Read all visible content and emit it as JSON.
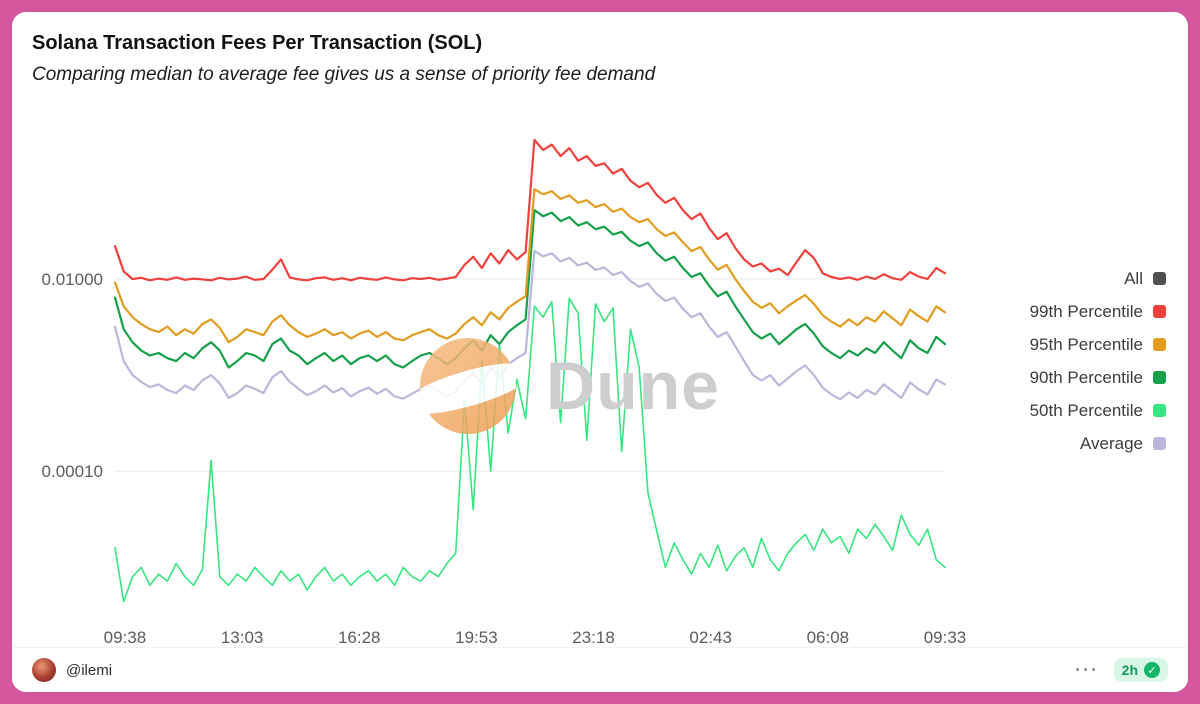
{
  "card": {
    "title": "Solana Transaction Fees Per Transaction (SOL)",
    "subtitle": "Comparing median to average fee gives us a sense of priority fee demand"
  },
  "watermark": {
    "text": "Dune"
  },
  "footer": {
    "author": "@ilemi",
    "menu": "⋯",
    "badge": {
      "time": "2h",
      "check": "✓"
    }
  },
  "chart_data": {
    "type": "line",
    "title": "Solana Transaction Fees Per Transaction (SOL)",
    "x_ticks": [
      "09:38",
      "13:03",
      "16:28",
      "19:53",
      "23:18",
      "02:43",
      "06:08",
      "09:33"
    ],
    "y_axis": {
      "scale": "log",
      "min": 3.6e-06,
      "max": 0.4,
      "ticks": [
        {
          "label": "0.01000",
          "value": 0.01
        },
        {
          "label": "0.00010",
          "value": 0.0001
        }
      ]
    },
    "grid": "horizontal-only",
    "legend_position": "right",
    "legend": [
      {
        "label": "All",
        "color": "#4f4f4f"
      },
      {
        "label": "99th Percentile",
        "color": "#f0413c"
      },
      {
        "label": "95th Percentile",
        "color": "#e29c1f"
      },
      {
        "label": "90th Percentile",
        "color": "#16a04a"
      },
      {
        "label": "50th Percentile",
        "color": "#37e581"
      },
      {
        "label": "Average",
        "color": "#bcb7da"
      }
    ],
    "series": [
      {
        "name": "99th Percentile",
        "color": "#f0413c",
        "values": [
          0.022,
          0.012,
          0.01,
          0.0103,
          0.0097,
          0.0101,
          0.0098,
          0.0104,
          0.0098,
          0.0101,
          0.0099,
          0.0097,
          0.0103,
          0.0099,
          0.0101,
          0.0106,
          0.0098,
          0.01,
          0.0125,
          0.016,
          0.0104,
          0.0099,
          0.0097,
          0.0102,
          0.0104,
          0.0098,
          0.0102,
          0.0097,
          0.0103,
          0.01,
          0.0098,
          0.0104,
          0.0099,
          0.0097,
          0.0102,
          0.01,
          0.0103,
          0.0098,
          0.0101,
          0.0105,
          0.014,
          0.017,
          0.013,
          0.0185,
          0.0145,
          0.02,
          0.016,
          0.019,
          0.28,
          0.22,
          0.25,
          0.19,
          0.23,
          0.17,
          0.19,
          0.15,
          0.16,
          0.125,
          0.14,
          0.105,
          0.09,
          0.1,
          0.075,
          0.062,
          0.07,
          0.052,
          0.042,
          0.048,
          0.034,
          0.026,
          0.03,
          0.021,
          0.016,
          0.0135,
          0.0145,
          0.012,
          0.0128,
          0.011,
          0.015,
          0.02,
          0.0165,
          0.0115,
          0.0105,
          0.01,
          0.0104,
          0.0098,
          0.0106,
          0.01,
          0.0112,
          0.0102,
          0.0098,
          0.0118,
          0.0106,
          0.01,
          0.013,
          0.0115
        ]
      },
      {
        "name": "95th Percentile",
        "color": "#e29c1f",
        "values": [
          0.0092,
          0.0052,
          0.004,
          0.0034,
          0.003,
          0.0028,
          0.0032,
          0.0026,
          0.003,
          0.0027,
          0.0034,
          0.0038,
          0.0031,
          0.0022,
          0.0025,
          0.003,
          0.0028,
          0.0026,
          0.0036,
          0.0042,
          0.0033,
          0.0028,
          0.0025,
          0.0027,
          0.003,
          0.0026,
          0.0028,
          0.0024,
          0.0027,
          0.0029,
          0.0025,
          0.0028,
          0.0024,
          0.0023,
          0.0026,
          0.0028,
          0.003,
          0.0026,
          0.0024,
          0.0027,
          0.0034,
          0.004,
          0.0033,
          0.0045,
          0.0038,
          0.005,
          0.0058,
          0.0066,
          0.086,
          0.076,
          0.082,
          0.068,
          0.074,
          0.062,
          0.066,
          0.056,
          0.06,
          0.05,
          0.054,
          0.044,
          0.039,
          0.042,
          0.033,
          0.028,
          0.0305,
          0.024,
          0.0195,
          0.0215,
          0.016,
          0.0125,
          0.014,
          0.01,
          0.0075,
          0.0058,
          0.005,
          0.0056,
          0.0044,
          0.0052,
          0.006,
          0.0068,
          0.0055,
          0.0042,
          0.0036,
          0.0032,
          0.0038,
          0.0033,
          0.004,
          0.0036,
          0.0046,
          0.0039,
          0.0033,
          0.0048,
          0.0041,
          0.0036,
          0.0052,
          0.0045
        ]
      },
      {
        "name": "90th Percentile",
        "color": "#16a04a",
        "values": [
          0.0064,
          0.003,
          0.0022,
          0.0018,
          0.0016,
          0.0017,
          0.0015,
          0.0014,
          0.0017,
          0.0015,
          0.0019,
          0.0022,
          0.0018,
          0.0012,
          0.0014,
          0.0017,
          0.0016,
          0.0014,
          0.0021,
          0.0024,
          0.0018,
          0.0016,
          0.0013,
          0.0015,
          0.0017,
          0.0014,
          0.0016,
          0.0013,
          0.0015,
          0.0016,
          0.0014,
          0.0016,
          0.0013,
          0.0012,
          0.0014,
          0.0016,
          0.0017,
          0.0015,
          0.0013,
          0.0015,
          0.0019,
          0.0023,
          0.0018,
          0.0026,
          0.0021,
          0.0028,
          0.0033,
          0.0038,
          0.052,
          0.045,
          0.049,
          0.04,
          0.044,
          0.036,
          0.039,
          0.033,
          0.035,
          0.029,
          0.031,
          0.025,
          0.022,
          0.024,
          0.0185,
          0.0155,
          0.017,
          0.013,
          0.0105,
          0.0115,
          0.0085,
          0.0066,
          0.0074,
          0.0052,
          0.0038,
          0.0028,
          0.0024,
          0.0027,
          0.0021,
          0.0025,
          0.003,
          0.0034,
          0.0027,
          0.002,
          0.0017,
          0.0015,
          0.0018,
          0.0016,
          0.0019,
          0.0017,
          0.0022,
          0.0018,
          0.0015,
          0.0023,
          0.0019,
          0.0017,
          0.0025,
          0.0021
        ]
      },
      {
        "name": "50th Percentile",
        "color": "#37e581",
        "values": [
          1.6e-05,
          4.4e-06,
          8e-06,
          1e-05,
          6.5e-06,
          8.5e-06,
          7.2e-06,
          1.1e-05,
          8e-06,
          6.5e-06,
          9.5e-06,
          0.00013,
          8e-06,
          6.5e-06,
          8.5e-06,
          7.2e-06,
          1e-05,
          8e-06,
          6.5e-06,
          9.2e-06,
          7.2e-06,
          8.5e-06,
          5.8e-06,
          8e-06,
          1e-05,
          7.2e-06,
          8.5e-06,
          6.5e-06,
          8e-06,
          9.2e-06,
          7.2e-06,
          8.5e-06,
          6.5e-06,
          1e-05,
          8e-06,
          7.2e-06,
          9.2e-06,
          8e-06,
          1.1e-05,
          1.4e-05,
          0.00055,
          4e-05,
          0.0014,
          0.0001,
          0.0021,
          0.00025,
          0.0009,
          0.00035,
          0.0052,
          0.004,
          0.0058,
          0.00032,
          0.0063,
          0.0044,
          0.00021,
          0.0055,
          0.0036,
          0.005,
          0.00016,
          0.003,
          0.0012,
          6e-05,
          2.4e-05,
          1e-05,
          1.8e-05,
          1.2e-05,
          8.5e-06,
          1.4e-05,
          1e-05,
          1.7e-05,
          9.2e-06,
          1.3e-05,
          1.6e-05,
          1e-05,
          2e-05,
          1.2e-05,
          9.2e-06,
          1.4e-05,
          1.8e-05,
          2.2e-05,
          1.5e-05,
          2.5e-05,
          1.8e-05,
          2.1e-05,
          1.4e-05,
          2.5e-05,
          2e-05,
          2.8e-05,
          2.1e-05,
          1.5e-05,
          3.5e-05,
          2.2e-05,
          1.7e-05,
          2.5e-05,
          1.2e-05,
          1e-05
        ]
      },
      {
        "name": "Average",
        "color": "#bcb7da",
        "values": [
          0.0032,
          0.0014,
          0.001,
          0.00085,
          0.00075,
          0.0008,
          0.0007,
          0.00065,
          0.00078,
          0.0007,
          0.00088,
          0.001,
          0.00082,
          0.00058,
          0.00065,
          0.00078,
          0.00072,
          0.00065,
          0.00095,
          0.0011,
          0.00085,
          0.00072,
          0.00062,
          0.00068,
          0.00078,
          0.00066,
          0.00073,
          0.0006,
          0.00068,
          0.00074,
          0.00064,
          0.00072,
          0.0006,
          0.00057,
          0.00064,
          0.00072,
          0.00078,
          0.00068,
          0.0006,
          0.00068,
          0.00085,
          0.00105,
          0.00082,
          0.0012,
          0.00095,
          0.0013,
          0.0015,
          0.0017,
          0.0196,
          0.0172,
          0.0185,
          0.0152,
          0.0166,
          0.0138,
          0.0148,
          0.0124,
          0.0132,
          0.011,
          0.0118,
          0.0095,
          0.0083,
          0.009,
          0.007,
          0.0059,
          0.0064,
          0.0049,
          0.004,
          0.0044,
          0.0032,
          0.0025,
          0.0028,
          0.002,
          0.0014,
          0.001,
          0.00088,
          0.001,
          0.00078,
          0.00092,
          0.0011,
          0.00126,
          0.001,
          0.00074,
          0.00063,
          0.00056,
          0.00066,
          0.00058,
          0.0007,
          0.00063,
          0.0008,
          0.00068,
          0.00058,
          0.00084,
          0.00071,
          0.00063,
          0.0009,
          0.0008
        ]
      }
    ]
  }
}
